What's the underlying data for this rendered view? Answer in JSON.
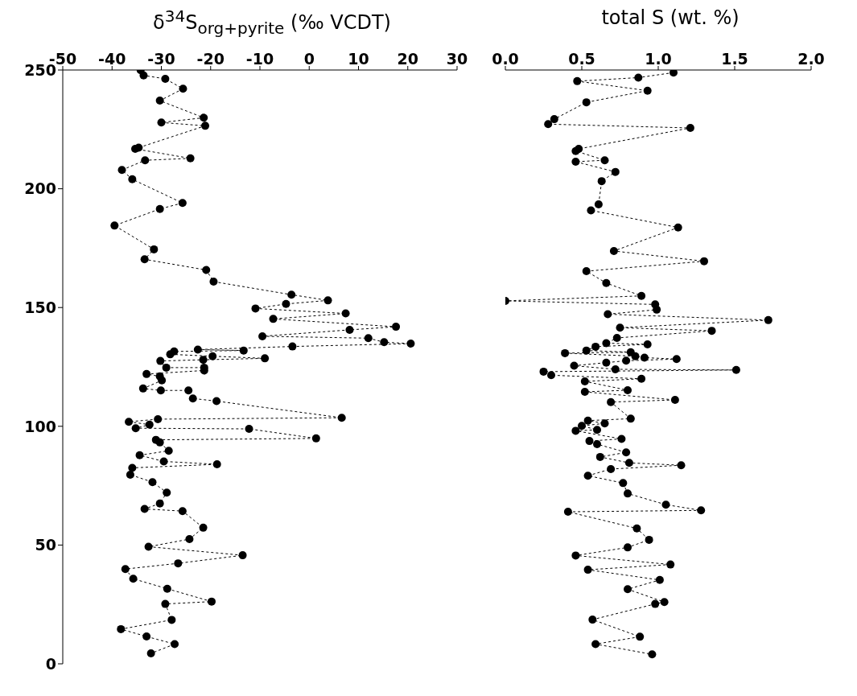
{
  "chart_data": [
    {
      "type": "line",
      "xlabel": "δ$^{34}$S$_{org+pyrite}$ (‰ VCDT)",
      "xlim": [
        -50,
        30
      ],
      "xticks": [
        -50,
        -40,
        -30,
        -20,
        -10,
        0,
        10,
        20,
        30
      ],
      "ylim": [
        0,
        250
      ],
      "yticks": [
        0,
        50,
        100,
        150,
        200,
        250
      ],
      "marker": "circle",
      "line_style": "dashed",
      "series": [
        {
          "color": "#000000",
          "x": [
            -34.2,
            -33.6,
            -29.2,
            -25.6,
            -30.3,
            -21.4,
            -30.0,
            -21.1,
            -34.6,
            -35.3,
            -24.1,
            -33.3,
            -38.0,
            -35.9,
            -25.7,
            -30.3,
            -39.5,
            -31.5,
            -33.4,
            -20.9,
            -19.4,
            -3.6,
            3.8,
            -4.7,
            -10.9,
            7.4,
            -7.3,
            17.6,
            8.2,
            -9.5,
            12.0,
            15.2,
            20.6,
            -3.4,
            -22.6,
            -13.3,
            -27.4,
            -28.2,
            -19.6,
            -9.0,
            -21.5,
            -30.2,
            -29.0,
            -21.3,
            -21.3,
            -33.0,
            -30.3,
            -29.9,
            -33.7,
            -30.1,
            -24.5,
            -23.6,
            -18.8,
            6.6,
            -30.7,
            -36.6,
            -32.4,
            -35.2,
            -12.2,
            1.4,
            -31.1,
            -30.3,
            -28.5,
            -34.4,
            -29.5,
            -18.7,
            -35.9,
            -36.3,
            -31.8,
            -28.9,
            -30.3,
            -33.4,
            -25.7,
            -21.5,
            -24.3,
            -32.6,
            -13.5,
            -26.6,
            -37.3,
            -35.7,
            -28.8,
            -19.8,
            -29.2,
            -27.9,
            -38.2,
            -33.0,
            -27.3,
            -32.1
          ],
          "values": [
            249.9,
            247.7,
            246.3,
            242.1,
            237.1,
            229.9,
            227.9,
            226.5,
            217.3,
            216.8,
            212.8,
            212.0,
            207.9,
            204.0,
            194.0,
            191.5,
            184.5,
            174.5,
            170.3,
            165.8,
            160.9,
            155.4,
            153.0,
            151.5,
            149.6,
            147.5,
            145.2,
            141.9,
            140.6,
            137.9,
            137.1,
            135.4,
            134.8,
            133.6,
            132.3,
            131.9,
            131.5,
            130.3,
            129.5,
            128.6,
            128.0,
            127.5,
            124.7,
            124.7,
            123.5,
            122.0,
            121.0,
            119.3,
            115.9,
            115.1,
            115.1,
            111.7,
            110.6,
            103.6,
            103.0,
            101.9,
            100.7,
            99.2,
            98.9,
            94.9,
            94.3,
            93.2,
            89.7,
            87.8,
            85.2,
            84.0,
            82.5,
            79.6,
            76.5,
            72.1,
            67.5,
            65.2,
            64.3,
            57.3,
            52.5,
            49.3,
            45.7,
            42.3,
            39.9,
            35.8,
            31.6,
            26.2,
            25.2,
            18.5,
            14.6,
            11.5,
            8.3,
            4.4
          ]
        }
      ]
    },
    {
      "type": "line",
      "xlabel": "total S (wt. %)",
      "xlim": [
        0,
        2
      ],
      "xticks": [
        {
          "value": 0,
          "label": "0.0"
        },
        {
          "value": 0.5,
          "label": "0.5"
        },
        {
          "value": 1,
          "label": "1.0"
        },
        {
          "value": 1.5,
          "label": "1.5"
        },
        {
          "value": 2,
          "label": "2.0"
        }
      ],
      "ylim": [
        0,
        250
      ],
      "tick_labels": "x",
      "marker": "circle",
      "line_style": "dashed",
      "series": [
        {
          "color": "#000000",
          "x": [
            1.1,
            0.87,
            0.47,
            0.93,
            0.53,
            0.32,
            0.28,
            1.21,
            0.48,
            0.46,
            0.65,
            0.46,
            0.72,
            0.63,
            0.61,
            0.56,
            1.13,
            0.71,
            1.3,
            0.53,
            0.66,
            0.89,
            0.0,
            0.98,
            0.99,
            0.67,
            1.72,
            0.75,
            1.35,
            0.73,
            0.66,
            0.93,
            0.59,
            0.53,
            0.82,
            0.39,
            0.85,
            0.91,
            1.12,
            0.79,
            0.66,
            0.45,
            0.72,
            1.51,
            0.25,
            0.3,
            0.89,
            0.52,
            0.8,
            0.52,
            1.11,
            0.69,
            0.82,
            0.54,
            0.65,
            0.5,
            0.6,
            0.46,
            0.76,
            0.55,
            0.6,
            0.79,
            0.62,
            0.81,
            1.15,
            0.69,
            0.54,
            0.77,
            0.8,
            1.05,
            1.28,
            0.41,
            0.86,
            0.94,
            0.8,
            0.46,
            1.08,
            0.54,
            1.01,
            0.8,
            1.04,
            0.98,
            0.57,
            0.88,
            0.59,
            0.96
          ],
          "values": [
            248.9,
            246.8,
            245.3,
            241.3,
            236.4,
            229.3,
            227.2,
            225.6,
            216.8,
            215.9,
            212.0,
            211.4,
            207.1,
            203.2,
            193.4,
            190.9,
            183.7,
            173.8,
            169.5,
            165.3,
            160.3,
            154.9,
            152.8,
            151.3,
            149.1,
            147.2,
            144.7,
            141.5,
            140.2,
            137.2,
            135.0,
            134.5,
            133.5,
            131.9,
            131.2,
            130.8,
            129.5,
            128.9,
            128.3,
            127.6,
            126.8,
            125.5,
            124.0,
            123.7,
            123.0,
            121.5,
            120.0,
            118.9,
            115.2,
            114.5,
            111.1,
            110.2,
            103.2,
            102.4,
            101.2,
            100.2,
            98.5,
            98.1,
            94.7,
            93.8,
            92.5,
            89.0,
            87.1,
            84.6,
            83.6,
            82.0,
            79.2,
            76.1,
            71.7,
            67.0,
            64.6,
            64.0,
            57.0,
            52.2,
            49.0,
            45.6,
            41.8,
            39.6,
            35.3,
            31.4,
            26.0,
            25.2,
            18.6,
            11.4,
            8.3,
            4.0
          ]
        }
      ]
    }
  ]
}
